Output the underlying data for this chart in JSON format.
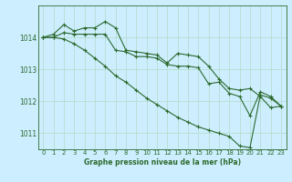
{
  "background_color": "#cceeff",
  "grid_color": "#b8ddd0",
  "line_color": "#2d6a2d",
  "title": "Graphe pression niveau de la mer (hPa)",
  "xlim": [
    -0.5,
    23.5
  ],
  "ylim": [
    1010.5,
    1015.0
  ],
  "yticks": [
    1011,
    1012,
    1013,
    1014
  ],
  "xticks": [
    0,
    1,
    2,
    3,
    4,
    5,
    6,
    7,
    8,
    9,
    10,
    11,
    12,
    13,
    14,
    15,
    16,
    17,
    18,
    19,
    20,
    21,
    22,
    23
  ],
  "series": [
    {
      "x": [
        0,
        1,
        2,
        3,
        4,
        5,
        6,
        7,
        8,
        9,
        10,
        11,
        12,
        13,
        14,
        15,
        16,
        17,
        18,
        19,
        20,
        21,
        22,
        23
      ],
      "y": [
        1014.0,
        1014.1,
        1014.4,
        1014.2,
        1014.3,
        1014.3,
        1014.5,
        1014.3,
        1013.6,
        1013.55,
        1013.5,
        1013.45,
        1013.2,
        1013.5,
        1013.45,
        1013.4,
        1013.1,
        1012.7,
        1012.4,
        1012.35,
        1012.4,
        1012.15,
        1011.8,
        1011.85
      ]
    },
    {
      "x": [
        0,
        1,
        2,
        3,
        4,
        5,
        6,
        7,
        8,
        9,
        10,
        11,
        12,
        13,
        14,
        15,
        16,
        17,
        18,
        19,
        20,
        21,
        22,
        23
      ],
      "y": [
        1014.0,
        1014.0,
        1014.15,
        1014.1,
        1014.1,
        1014.1,
        1014.1,
        1013.6,
        1013.55,
        1013.4,
        1013.4,
        1013.35,
        1013.15,
        1013.1,
        1013.1,
        1013.05,
        1012.55,
        1012.6,
        1012.25,
        1012.15,
        1011.55,
        1012.3,
        1012.15,
        1011.85
      ]
    },
    {
      "x": [
        0,
        1,
        2,
        3,
        4,
        5,
        6,
        7,
        8,
        9,
        10,
        11,
        12,
        13,
        14,
        15,
        16,
        17,
        18,
        19,
        20,
        21,
        22,
        23
      ],
      "y": [
        1014.0,
        1014.0,
        1013.95,
        1013.8,
        1013.6,
        1013.35,
        1013.1,
        1012.8,
        1012.6,
        1012.35,
        1012.1,
        1011.9,
        1011.7,
        1011.5,
        1011.35,
        1011.2,
        1011.1,
        1011.0,
        1010.9,
        1010.6,
        1010.55,
        1012.2,
        1012.1,
        1011.85
      ]
    }
  ],
  "xlabel_fontsize": 5.5,
  "tick_fontsize": 5.0,
  "ytick_fontsize": 5.5,
  "linewidth": 0.8,
  "markersize": 3.0,
  "markeredgewidth": 0.8
}
